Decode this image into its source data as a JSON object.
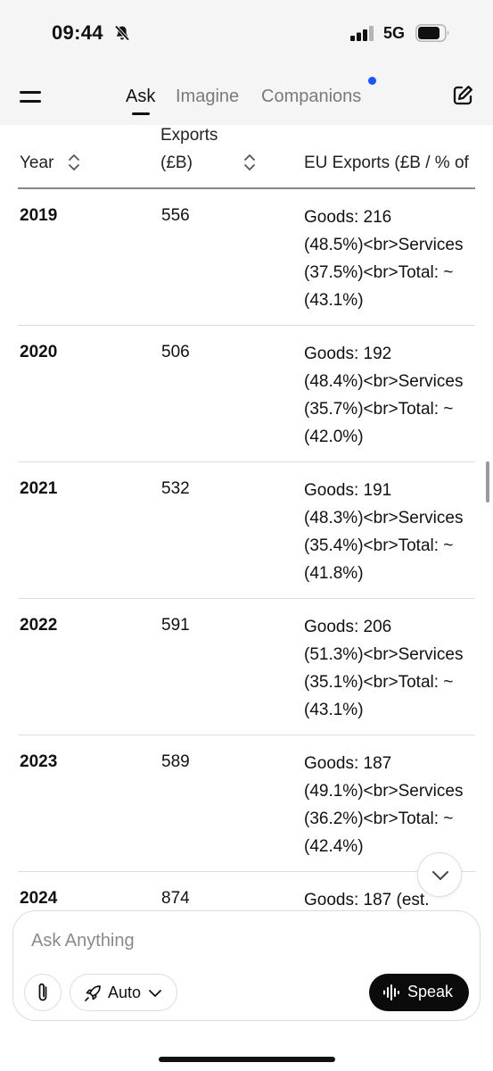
{
  "status_bar": {
    "time": "09:44",
    "network": "5G"
  },
  "header": {
    "tabs": [
      {
        "label": "Ask",
        "active": true
      },
      {
        "label": "Imagine",
        "active": false
      },
      {
        "label": "Companions",
        "active": false
      }
    ],
    "notification_dot_color": "#1a55ff"
  },
  "table": {
    "headers": {
      "year": "Year",
      "exports_line1": "Exports",
      "exports_line2": "(£B)",
      "eu": "EU Exports (£B / % of"
    },
    "rows": [
      {
        "year": "2019",
        "exports": "556",
        "eu_lines": [
          "Goods: 216",
          "(48.5%)<br>Services",
          "(37.5%)<br>Total: ~",
          "(43.1%)"
        ]
      },
      {
        "year": "2020",
        "exports": "506",
        "eu_lines": [
          "Goods: 192",
          "(48.4%)<br>Services",
          "(35.7%)<br>Total: ~",
          "(42.0%)"
        ]
      },
      {
        "year": "2021",
        "exports": "532",
        "eu_lines": [
          "Goods: 191",
          "(48.3%)<br>Services",
          "(35.4%)<br>Total: ~",
          "(41.8%)"
        ]
      },
      {
        "year": "2022",
        "exports": "591",
        "eu_lines": [
          "Goods: 206",
          "(51.3%)<br>Services",
          "(35.1%)<br>Total: ~",
          "(43.1%)"
        ]
      },
      {
        "year": "2023",
        "exports": "589",
        "eu_lines": [
          "Goods: 187",
          "(49.1%)<br>Services",
          "(36.2%)<br>Total: ~",
          "(42.4%)"
        ]
      },
      {
        "year": "2024",
        "exports": "874",
        "eu_lines": [
          "Goods: 187 (est."
        ]
      }
    ]
  },
  "composer": {
    "placeholder": "Ask Anything",
    "mode_label": "Auto",
    "speak_label": "Speak"
  },
  "icons": {
    "bell": "bell-slash-icon",
    "signal": "signal-icon",
    "battery": "battery-icon",
    "menu": "menu-icon",
    "compose": "compose-icon",
    "sort": "sort-icon",
    "scroll_down": "chevron-down-icon",
    "attach": "paperclip-icon",
    "mode": "rocket-icon",
    "speak": "waveform-icon"
  }
}
